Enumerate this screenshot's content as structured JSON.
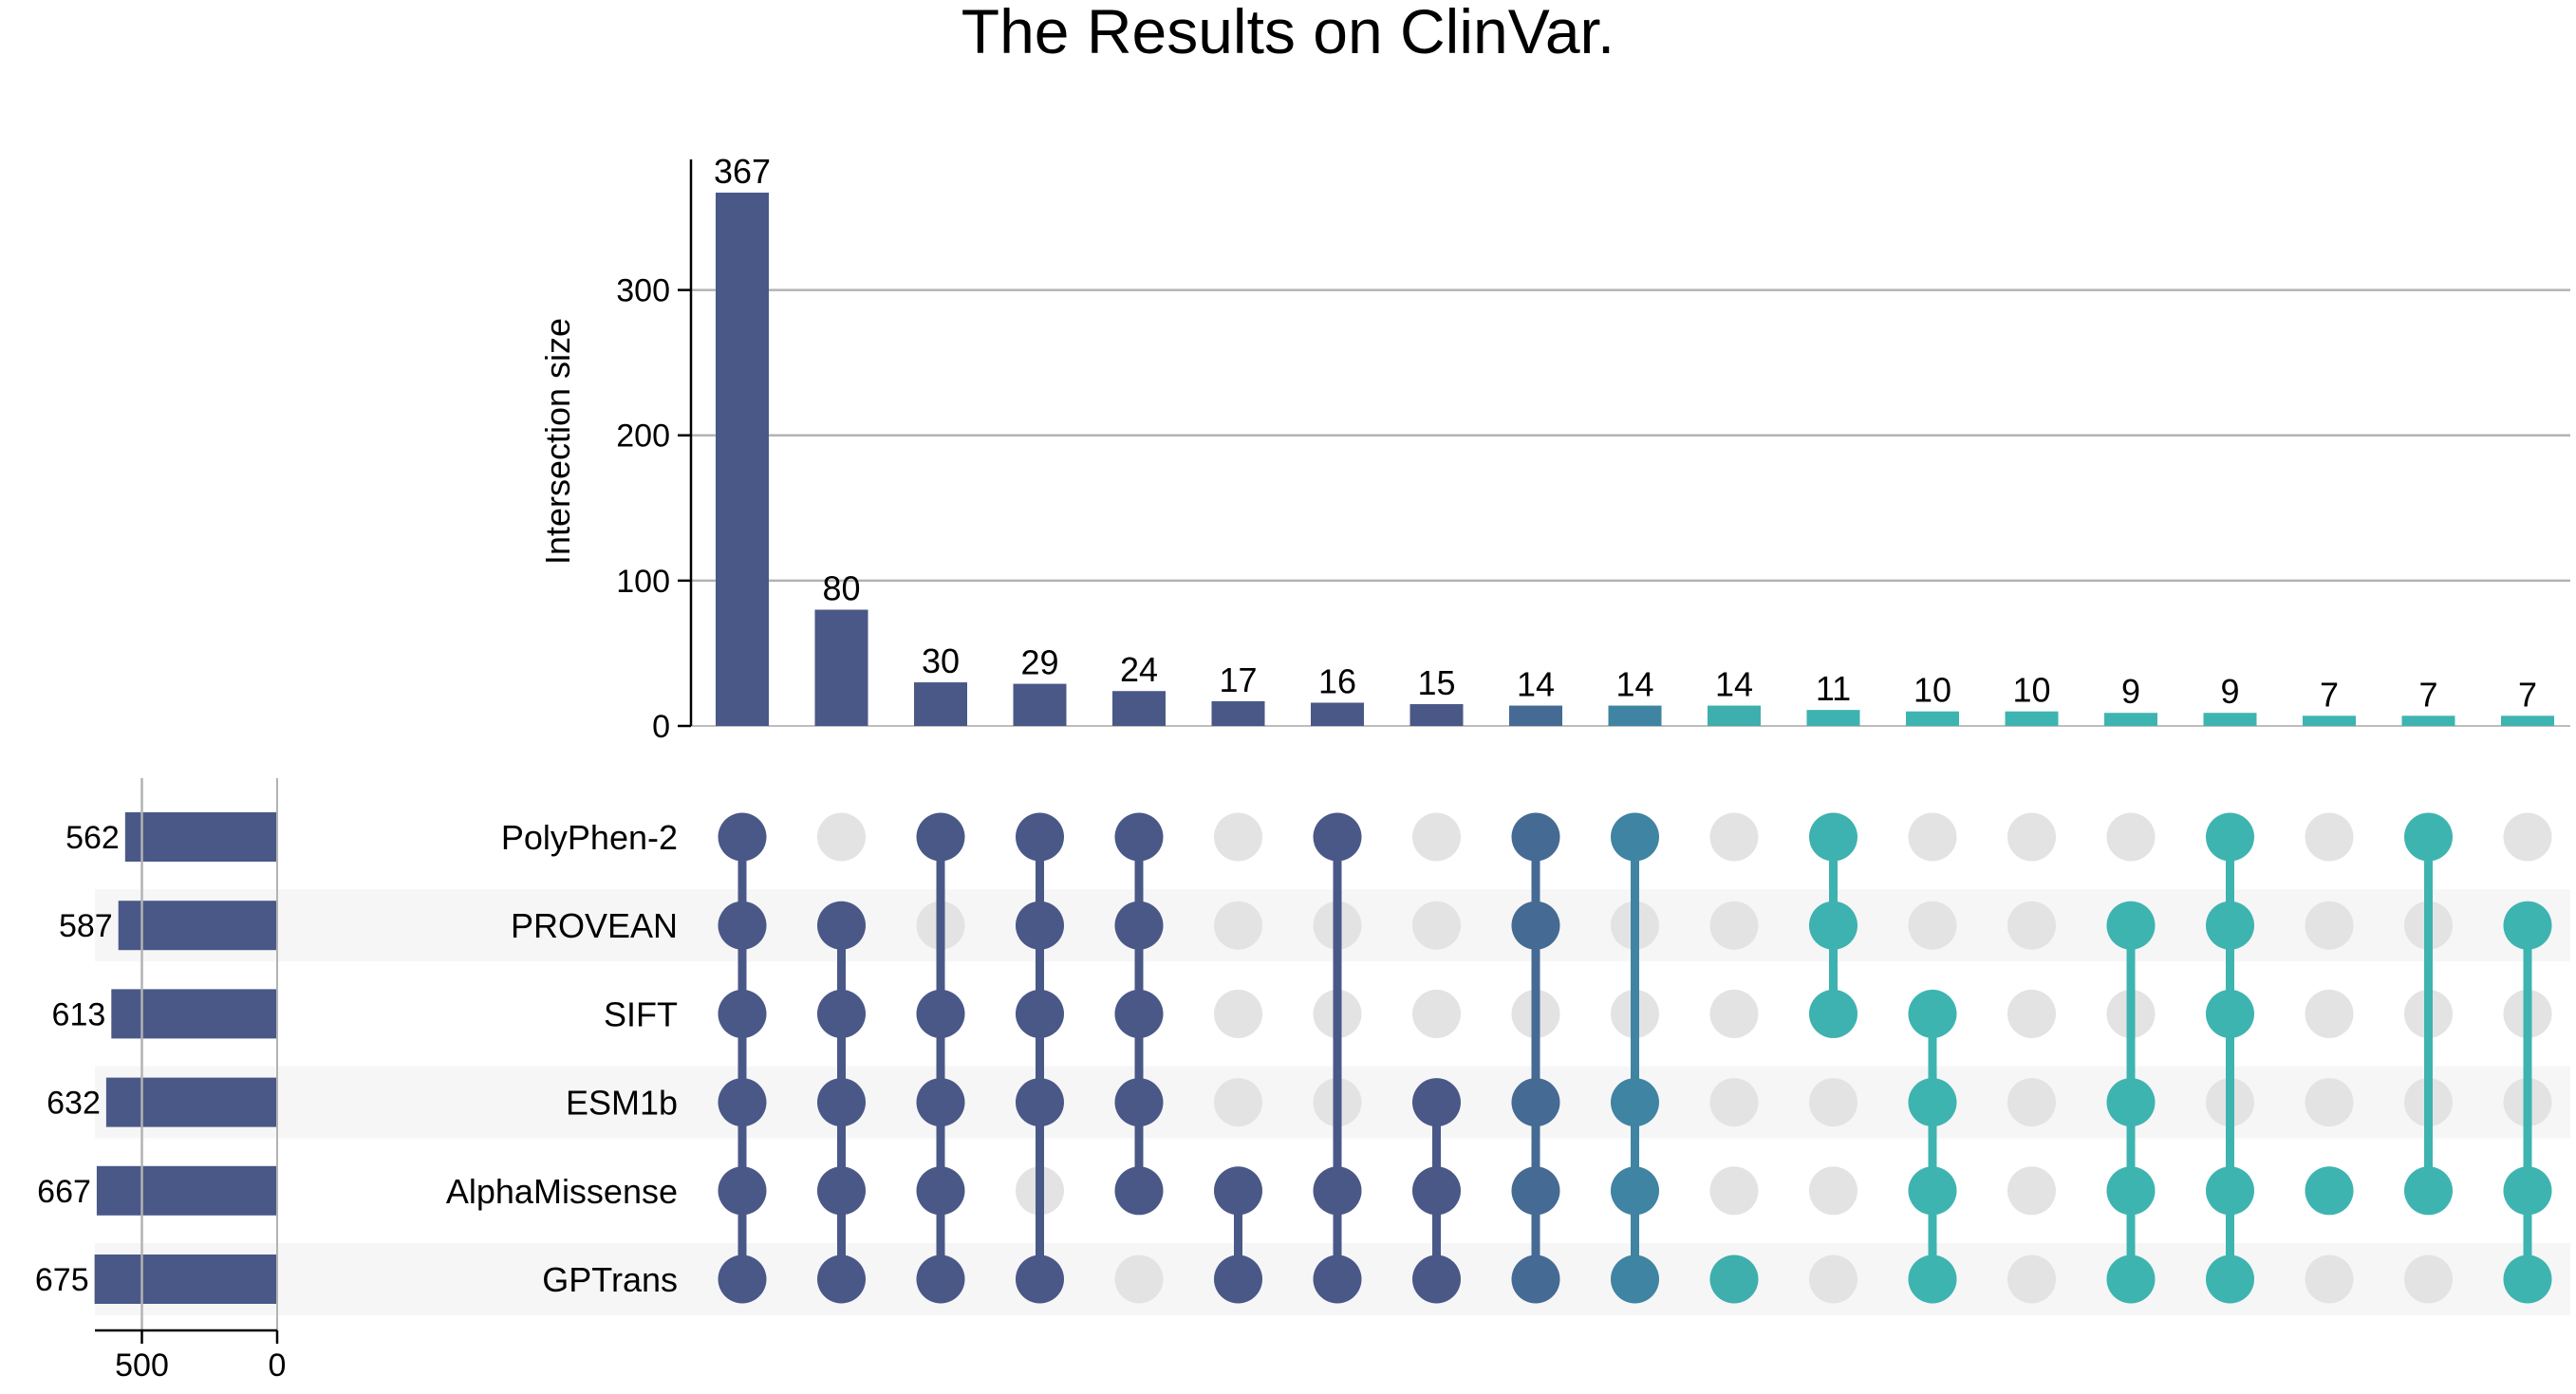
{
  "chart_data": {
    "type": "upset",
    "title": "The Results on ClinVar.",
    "ylabel": "Intersection size",
    "ylim": [
      0,
      367
    ],
    "yticks": [
      0,
      100,
      200,
      300
    ],
    "grid": true,
    "sets": [
      "PolyPhen-2",
      "PROVEAN",
      "SIFT",
      "ESM1b",
      "AlphaMissense",
      "GPTrans"
    ],
    "set_sizes": [
      562,
      587,
      613,
      632,
      667,
      675
    ],
    "set_size_ticks": [
      500,
      0
    ],
    "intersections": [
      {
        "size": 367,
        "members": [
          "PolyPhen-2",
          "PROVEAN",
          "SIFT",
          "ESM1b",
          "AlphaMissense",
          "GPTrans"
        ]
      },
      {
        "size": 80,
        "members": [
          "PROVEAN",
          "SIFT",
          "ESM1b",
          "AlphaMissense",
          "GPTrans"
        ]
      },
      {
        "size": 30,
        "members": [
          "PolyPhen-2",
          "SIFT",
          "ESM1b",
          "AlphaMissense",
          "GPTrans"
        ]
      },
      {
        "size": 29,
        "members": [
          "PolyPhen-2",
          "PROVEAN",
          "SIFT",
          "ESM1b",
          "GPTrans"
        ]
      },
      {
        "size": 24,
        "members": [
          "PolyPhen-2",
          "PROVEAN",
          "SIFT",
          "ESM1b",
          "AlphaMissense"
        ]
      },
      {
        "size": 17,
        "members": [
          "AlphaMissense",
          "GPTrans"
        ]
      },
      {
        "size": 16,
        "members": [
          "PolyPhen-2",
          "AlphaMissense",
          "GPTrans"
        ]
      },
      {
        "size": 15,
        "members": [
          "ESM1b",
          "AlphaMissense",
          "GPTrans"
        ]
      },
      {
        "size": 14,
        "members": [
          "PolyPhen-2",
          "PROVEAN",
          "ESM1b",
          "AlphaMissense",
          "GPTrans"
        ]
      },
      {
        "size": 14,
        "members": [
          "PolyPhen-2",
          "ESM1b",
          "AlphaMissense",
          "GPTrans"
        ]
      },
      {
        "size": 14,
        "members": [
          "GPTrans"
        ]
      },
      {
        "size": 11,
        "members": [
          "PolyPhen-2",
          "PROVEAN",
          "SIFT"
        ]
      },
      {
        "size": 10,
        "members": [
          "SIFT",
          "ESM1b",
          "AlphaMissense",
          "GPTrans"
        ]
      },
      {
        "size": 10,
        "members": []
      },
      {
        "size": 9,
        "members": [
          "PROVEAN",
          "ESM1b",
          "AlphaMissense",
          "GPTrans"
        ]
      },
      {
        "size": 9,
        "members": [
          "PolyPhen-2",
          "PROVEAN",
          "SIFT",
          "AlphaMissense",
          "GPTrans"
        ]
      },
      {
        "size": 7,
        "members": [
          "AlphaMissense"
        ]
      },
      {
        "size": 7,
        "members": [
          "PolyPhen-2",
          "AlphaMissense"
        ]
      },
      {
        "size": 7,
        "members": [
          "PROVEAN",
          "AlphaMissense",
          "GPTrans"
        ]
      }
    ],
    "colors": {
      "inactive_dot": "#e3e3e3",
      "set_bar": "#4a5888",
      "grid": "#b3b3b3",
      "row_stripe": "#f6f6f6",
      "intersection_gradient": [
        "#4a5888",
        "#4a5888",
        "#4a5888",
        "#4a5888",
        "#4a5888",
        "#4a5888",
        "#4a5888",
        "#4a5888",
        "#456a94",
        "#3f84a2",
        "#3eafad",
        "#3eb2b0",
        "#3eb4b1",
        "#3eb4b1",
        "#3eb4b1",
        "#3eb4b1",
        "#3eb4b1",
        "#3eb4b1",
        "#3eb4b1"
      ]
    }
  }
}
